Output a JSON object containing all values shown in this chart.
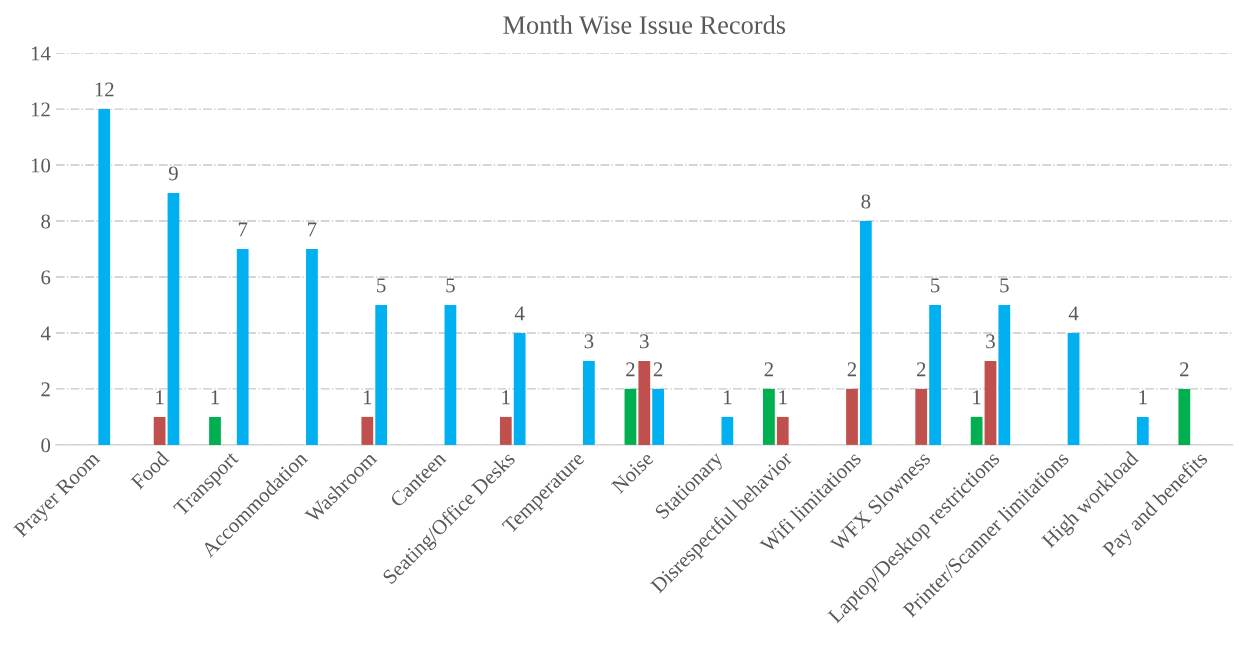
{
  "chart_data": {
    "type": "bar",
    "title": "Month Wise Issue Records",
    "categories": [
      "Prayer Room",
      "Food",
      "Transport",
      "Accommodation",
      "Washroom",
      "Canteen",
      "Seating/Office Desks",
      "Temperature",
      "Noise",
      "Stationary",
      "Disrespectful behavior",
      "Wifi limitations",
      "WFX Slowness",
      "Laptop/Desktop restrictions",
      "Printer/Scanner limitations",
      "High workload",
      "Pay and benefits"
    ],
    "series": [
      {
        "color": "#00b050",
        "values": [
          null,
          null,
          1,
          null,
          null,
          null,
          null,
          null,
          2,
          null,
          2,
          null,
          null,
          1,
          null,
          null,
          2
        ]
      },
      {
        "color": "#c0504d",
        "values": [
          null,
          1,
          null,
          null,
          1,
          null,
          1,
          null,
          3,
          null,
          1,
          2,
          2,
          3,
          null,
          null,
          null
        ]
      },
      {
        "color": "#00b0f0",
        "values": [
          12,
          9,
          7,
          7,
          5,
          5,
          4,
          3,
          2,
          1,
          null,
          8,
          5,
          5,
          4,
          1,
          null
        ]
      }
    ],
    "ylim": [
      0,
      14
    ],
    "yticks": [
      0,
      2,
      4,
      6,
      8,
      10,
      12,
      14
    ],
    "grid": "y",
    "data_labels": true
  }
}
